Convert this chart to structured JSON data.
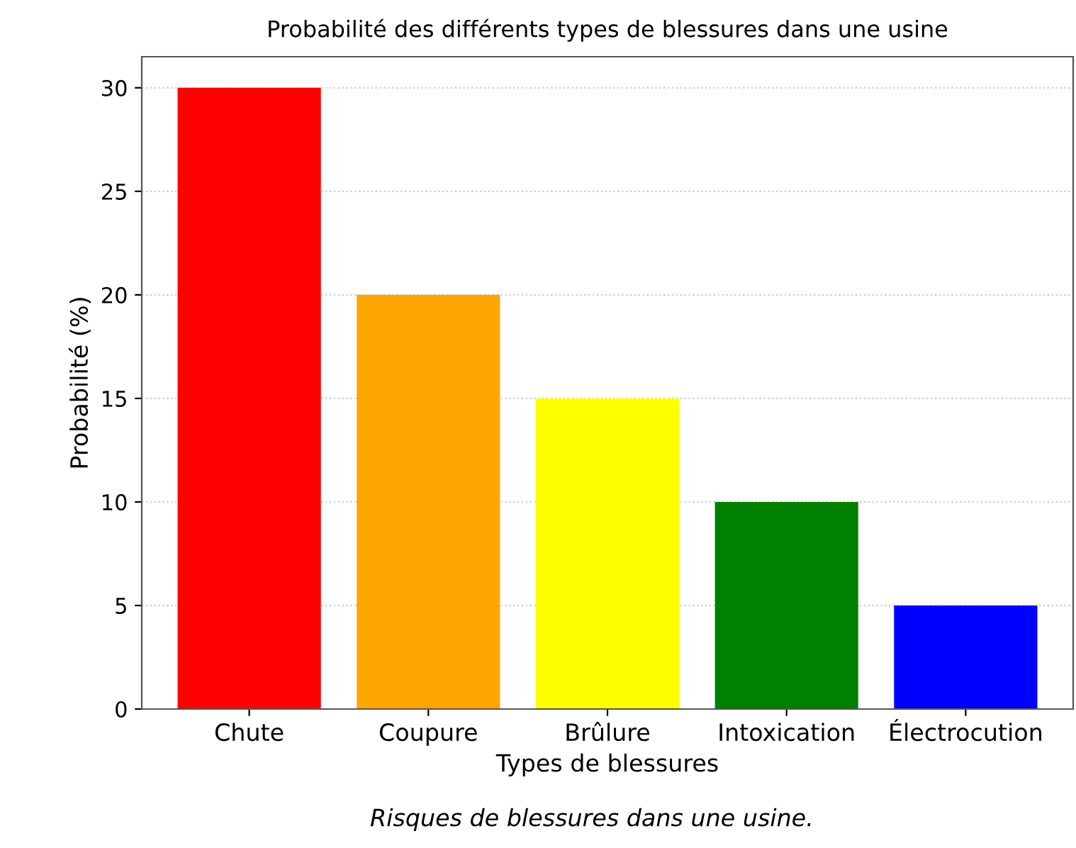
{
  "chart_data": {
    "type": "bar",
    "title": "Probabilité des différents types de blessures dans une usine",
    "xlabel": "Types de blessures",
    "ylabel": "Probabilité (%)",
    "categories": [
      "Chute",
      "Coupure",
      "Brûlure",
      "Intoxication",
      "Électrocution"
    ],
    "values": [
      30,
      20,
      15,
      10,
      5
    ],
    "colors": [
      "#ff0000",
      "#ffa500",
      "#ffff00",
      "#008000",
      "#0000ff"
    ],
    "ylim": [
      0,
      31.5
    ],
    "yticks": [
      0,
      5,
      10,
      15,
      20,
      25,
      30
    ],
    "grid": "y",
    "annotations": [
      "Risques de blessures dans une usine."
    ]
  }
}
